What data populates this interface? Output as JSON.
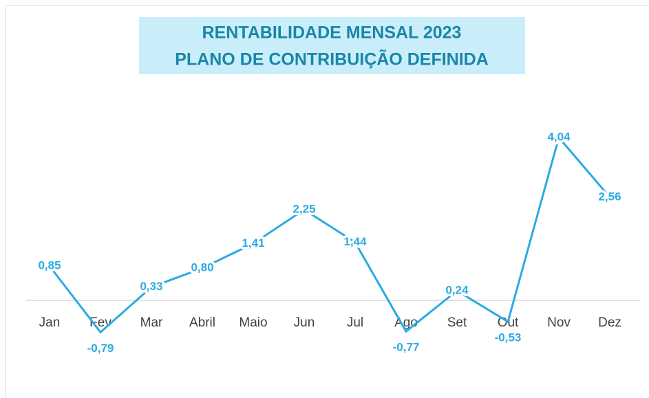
{
  "chart_data": {
    "type": "line",
    "title": "RENTABILIDADE MENSAL 2023",
    "subtitle": "PLANO DE CONTRIBUIÇÃO DEFINIDA",
    "categories": [
      "Jan",
      "Fev",
      "Mar",
      "Abril",
      "Maio",
      "Jun",
      "Jul",
      "Ago",
      "Set",
      "Out",
      "Nov",
      "Dez"
    ],
    "series": [
      {
        "color": "#29abe2",
        "values": [
          0.85,
          -0.79,
          0.33,
          0.8,
          1.41,
          2.25,
          1.44,
          -0.77,
          0.24,
          -0.53,
          4.04,
          2.56
        ],
        "value_labels": [
          "0,85",
          "-0,79",
          "0,33",
          "0,80",
          "1,41",
          "2,25",
          "1,44",
          "-0,77",
          "0,24",
          "-0,53",
          "4,04",
          "2,56"
        ]
      }
    ]
  }
}
